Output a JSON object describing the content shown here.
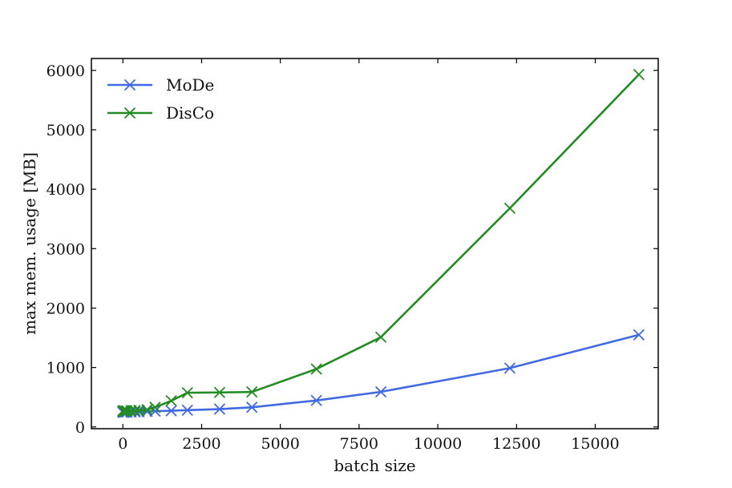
{
  "chart_data": {
    "type": "line",
    "title": "",
    "xlabel": "batch size",
    "ylabel": "max mem. usage [MB]",
    "xlim": [
      -1000,
      17000
    ],
    "ylim": [
      -30,
      6200
    ],
    "xticks": [
      0,
      2500,
      5000,
      7500,
      10000,
      12500,
      15000
    ],
    "yticks": [
      0,
      1000,
      2000,
      3000,
      4000,
      5000,
      6000
    ],
    "legend_position": "upper-left",
    "grid": false,
    "marker": "x",
    "series": [
      {
        "name": "MoDe",
        "color": "#4169e1",
        "x": [
          1,
          2,
          4,
          8,
          16,
          32,
          64,
          128,
          256,
          384,
          512,
          768,
          1024,
          1536,
          2048,
          3072,
          4096,
          6144,
          8192,
          12288,
          16384
        ],
        "y": [
          248,
          248,
          248,
          248,
          248,
          248,
          248,
          249,
          250,
          252,
          255,
          260,
          265,
          272,
          282,
          300,
          330,
          445,
          590,
          990,
          1550
        ]
      },
      {
        "name": "DisCo",
        "color": "#228b22",
        "x": [
          1,
          2,
          4,
          8,
          16,
          32,
          64,
          128,
          256,
          384,
          512,
          768,
          1024,
          1536,
          2048,
          3072,
          4096,
          6144,
          8192,
          12288,
          16384
        ],
        "y": [
          270,
          270,
          270,
          270,
          270,
          270,
          270,
          271,
          272,
          275,
          278,
          290,
          330,
          440,
          575,
          580,
          588,
          975,
          1510,
          3680,
          5930
        ]
      }
    ]
  }
}
